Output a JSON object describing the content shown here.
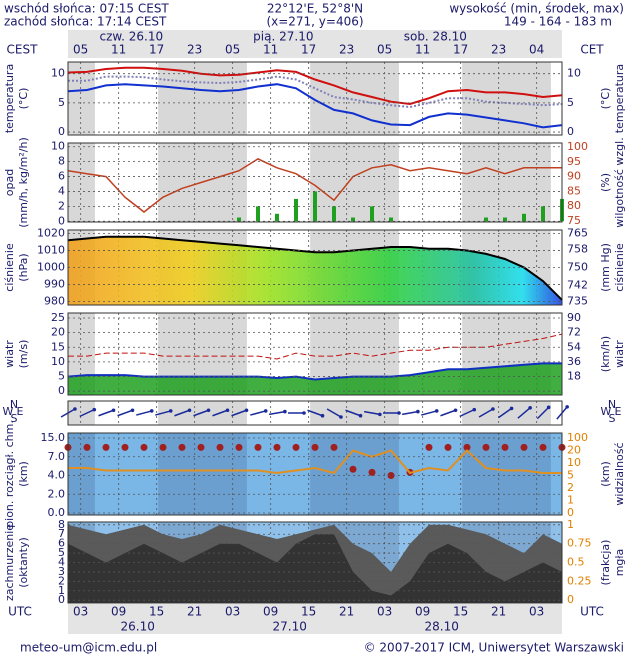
{
  "header": {
    "sunrise": "wschód słońca: 07:15 CEST",
    "sunset": "zachód słońca: 17:14 CEST",
    "coords": "22°12'E, 52°8'N",
    "grid": "(x=271, y=406)",
    "height_label": "wysokość (min, środek, max)",
    "height_values": "149 - 164 - 183 m"
  },
  "footer": {
    "email": "meteo-um@icm.edu.pl",
    "copyright": "© 2007-2017 ICM, Uniwersytet Warszawski"
  },
  "time": {
    "x": [
      1,
      4,
      7,
      10,
      13,
      16,
      19,
      22,
      25,
      28,
      31,
      34,
      37,
      40,
      43,
      46,
      49,
      52,
      55,
      58,
      61,
      64,
      67,
      70,
      73,
      76,
      79
    ],
    "xlim": [
      1,
      79
    ],
    "top_label": "CEST",
    "top_label2": "CET",
    "bottom_label": "UTC",
    "top_ticks": [
      {
        "value": 3,
        "label": "05"
      },
      {
        "value": 9,
        "label": "11"
      },
      {
        "value": 15,
        "label": "17"
      },
      {
        "value": 21,
        "label": "23"
      },
      {
        "value": 27,
        "label": "05"
      },
      {
        "value": 33,
        "label": "11"
      },
      {
        "value": 39,
        "label": "17"
      },
      {
        "value": 45,
        "label": "23"
      },
      {
        "value": 51,
        "label": "05"
      },
      {
        "value": 57,
        "label": "11"
      },
      {
        "value": 63,
        "label": "17"
      },
      {
        "value": 69,
        "label": "23"
      },
      {
        "value": 75,
        "label": "04"
      }
    ],
    "bottom_ticks": [
      {
        "value": 3,
        "label": "03"
      },
      {
        "value": 9,
        "label": "09"
      },
      {
        "value": 15,
        "label": "15"
      },
      {
        "value": 21,
        "label": "21"
      },
      {
        "value": 27,
        "label": "03"
      },
      {
        "value": 33,
        "label": "09"
      },
      {
        "value": 39,
        "label": "15"
      },
      {
        "value": 45,
        "label": "21"
      },
      {
        "value": 51,
        "label": "03"
      },
      {
        "value": 57,
        "label": "09"
      },
      {
        "value": 63,
        "label": "15"
      },
      {
        "value": 69,
        "label": "21"
      },
      {
        "value": 75,
        "label": "03"
      }
    ],
    "top_days": [
      "czw. 26.10",
      "pią. 27.10",
      "sob. 28.10"
    ],
    "bottom_days": [
      "26.10",
      "27.10",
      "28.10"
    ]
  },
  "chart_data": [
    {
      "type": "line",
      "ylabel": "temperatura",
      "yunit": "(°C)",
      "ylim": [
        -0.5,
        12
      ],
      "yticks": [
        0,
        5,
        10
      ],
      "grid": true,
      "series": [
        {
          "color": "#d01010",
          "values": [
            10.2,
            10.3,
            10.8,
            11,
            11,
            10.8,
            10.5,
            10,
            9.7,
            9.8,
            10.2,
            10.6,
            10.3,
            9,
            8,
            6.8,
            6,
            5.2,
            4.8,
            5.8,
            7,
            7.2,
            6.8,
            6.8,
            6.5,
            6,
            6.3
          ]
        },
        {
          "color": "#8080b8",
          "dotted": true,
          "values": [
            8.8,
            8.8,
            9.5,
            9.5,
            9.4,
            9,
            8.7,
            8.5,
            8.4,
            8.6,
            9,
            9.5,
            9,
            7.5,
            6,
            5.6,
            5,
            4.6,
            4.3,
            5,
            5.8,
            5.8,
            5.2,
            5,
            4.8,
            4.6,
            4.8
          ]
        },
        {
          "color": "#1030d0",
          "values": [
            7,
            7.2,
            8,
            8.2,
            8,
            7.8,
            7.5,
            7.2,
            7,
            7.2,
            7.8,
            8.2,
            7.5,
            5.5,
            3.8,
            3.2,
            2,
            1.3,
            1.2,
            2.6,
            3.2,
            3,
            2.5,
            2,
            1.5,
            0.8,
            1.2
          ]
        }
      ]
    },
    {
      "type": "precip",
      "ylabel": "opad",
      "yunit": "(mm/h, kg/m²/h)",
      "y2label": "wilgotność wzgl.",
      "y2unit": "(%)",
      "ylim": [
        -0.1,
        10.5
      ],
      "yticks": [
        0,
        2,
        4,
        6,
        8,
        10
      ],
      "y2lim": [
        74.6,
        101.4
      ],
      "y2ticks": [
        75,
        80,
        85,
        90,
        95,
        100
      ],
      "y2color": "#c04020",
      "grid": true,
      "series": [
        {
          "color": "#20a020",
          "values": [
            0,
            0,
            0,
            0,
            0,
            0,
            0,
            0,
            0,
            0.5,
            2,
            1,
            3,
            4,
            2,
            0.5,
            2,
            0.5,
            0,
            0,
            0,
            0,
            0.5,
            0.5,
            1,
            2,
            3
          ]
        },
        {
          "color": "#c04020",
          "axis": "y2",
          "values": [
            92,
            91,
            90,
            83,
            78,
            83,
            86,
            88,
            90,
            92,
            96,
            93,
            91,
            87,
            82,
            90,
            93,
            94,
            92,
            93,
            92,
            91,
            93,
            91,
            93,
            93,
            93
          ]
        }
      ]
    },
    {
      "type": "area",
      "ylabel": "ciśnienie",
      "yunit": "(hPa)",
      "y2label": "ciśnienie",
      "y2unit": "(mm Hg)",
      "ylim": [
        978,
        1022
      ],
      "yticks": [
        980,
        990,
        1000,
        1010,
        1020
      ],
      "y2lim": [
        733.5,
        766.5
      ],
      "y2ticks": [
        735,
        742,
        750,
        758,
        765
      ],
      "grid": true,
      "series": [
        {
          "color": "#000000",
          "values": [
            1016,
            1017,
            1018,
            1018,
            1018,
            1017,
            1016,
            1015,
            1014,
            1013,
            1012,
            1011,
            1010,
            1009,
            1009,
            1010,
            1011,
            1012,
            1012,
            1011,
            1011,
            1010,
            1008,
            1005,
            1000,
            992,
            981
          ]
        }
      ]
    },
    {
      "type": "wind",
      "ylabel": "wiatr",
      "yunit": "(m/s)",
      "y2label": "wiatr",
      "y2unit": "(km/h)",
      "ylim": [
        -1.3,
        26.7
      ],
      "yticks": [
        0,
        5,
        10,
        15,
        20,
        25
      ],
      "y2lim": [
        -4.68,
        96.12
      ],
      "y2ticks": [
        18,
        36,
        54,
        72,
        90
      ],
      "grid": true,
      "series": [
        {
          "color": "#1030c0",
          "fill": "#20a020",
          "values": [
            5,
            5.5,
            5.5,
            5.5,
            5,
            5,
            5,
            5,
            5,
            5,
            5,
            4.5,
            5,
            4,
            4.5,
            5,
            5,
            5,
            5.5,
            6.5,
            7.5,
            7.5,
            8,
            8.5,
            9,
            9.5,
            9.5
          ]
        },
        {
          "color": "#c01010",
          "dashed": true,
          "values": [
            12,
            12,
            13,
            13,
            13,
            12,
            12,
            12,
            12,
            12,
            12,
            11,
            13,
            12,
            12,
            13,
            12,
            13,
            14,
            14,
            15,
            15,
            15,
            16,
            17,
            18,
            19.5
          ]
        }
      ]
    },
    {
      "type": "arrows",
      "compass": [
        "N",
        "W",
        "E",
        "S"
      ],
      "color": "#1a2a9a",
      "values": [
        240,
        245,
        250,
        250,
        255,
        255,
        250,
        250,
        250,
        250,
        255,
        260,
        270,
        290,
        300,
        290,
        280,
        270,
        260,
        255,
        250,
        245,
        240,
        235,
        230,
        225,
        220
      ]
    },
    {
      "type": "visibility",
      "ylabel": "pion. rozciągł. chm.",
      "yunit": "(km)",
      "y2label": "widzialność",
      "y2unit": "(km)",
      "yscale": "piecewise",
      "y2scale": "piecewise",
      "yticks": [
        {
          "value": 0,
          "label": "0.0"
        },
        {
          "value": 2,
          "label": "2.0"
        },
        {
          "value": 4,
          "label": "4.0"
        },
        {
          "value": 7,
          "label": "7.0"
        },
        {
          "value": 15,
          "label": "15.0"
        }
      ],
      "y2ticks": [
        0,
        1,
        2,
        5,
        10,
        20,
        100
      ],
      "y2color": "#e08000",
      "grid": true,
      "series": [
        {
          "color": "#a02020",
          "dots": true,
          "values": [
            11,
            11,
            11,
            11,
            11,
            11,
            11,
            11,
            11,
            11,
            11,
            11,
            11,
            11,
            11,
            5,
            4.5,
            4,
            4.5,
            11,
            11,
            11,
            11,
            11,
            11,
            11,
            11
          ]
        },
        {
          "color": "#e09020",
          "axis": "y2",
          "values": [
            8,
            8,
            7,
            7,
            7,
            7,
            7,
            7,
            7,
            7,
            7,
            6,
            7,
            8,
            6,
            20,
            15,
            20,
            6,
            8,
            7,
            20,
            8,
            7,
            7,
            6,
            6
          ]
        }
      ]
    },
    {
      "type": "cloud",
      "ylabel": "zachmurzenie",
      "yunit": "(oktanty)",
      "y2label": "mgła",
      "y2unit": "(frakcja)",
      "ylim": [
        -0.3,
        8.3
      ],
      "yticks": [
        0,
        1,
        2,
        3,
        4,
        5,
        6,
        7,
        8
      ],
      "y2lim": [
        -0.0375,
        1.0375
      ],
      "y2ticks": [
        0,
        0.25,
        0.5,
        0.75,
        1
      ],
      "y2color": "#e08000",
      "grid": true,
      "series": [
        {
          "color": "#5a5a5a",
          "values": [
            8,
            7.5,
            7,
            7.5,
            8,
            7,
            6.5,
            7,
            8,
            7.5,
            7,
            6.5,
            7,
            7.5,
            8,
            6,
            5,
            3,
            6,
            8,
            8,
            7.5,
            7,
            6,
            5,
            7,
            6
          ]
        },
        {
          "color": "#333333",
          "values": [
            6,
            5,
            4,
            5,
            6,
            5,
            4,
            5,
            6,
            6,
            5,
            4,
            6,
            7,
            7,
            3,
            1,
            0.5,
            2,
            5,
            6,
            5,
            3,
            2,
            3,
            4,
            3
          ]
        }
      ]
    }
  ]
}
